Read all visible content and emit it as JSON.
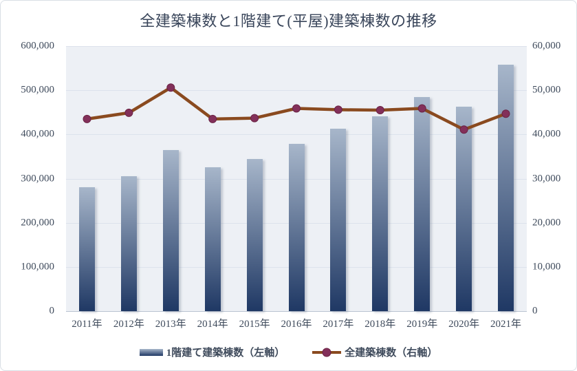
{
  "title": "全建築棟数と1階建て(平屋)建築棟数の推移",
  "legend": {
    "bars": "1階建て建築棟数（左軸）",
    "line": "全建築棟数（右軸）"
  },
  "axes": {
    "left_ticks": [
      "600,000",
      "500,000",
      "400,000",
      "300,000",
      "200,000",
      "100,000",
      "0"
    ],
    "right_ticks": [
      "60,000",
      "50,000",
      "40,000",
      "30,000",
      "20,000",
      "10,000",
      "0"
    ]
  },
  "colors": {
    "title_text": "#39455a",
    "axis_text": "#3f4b5c",
    "plot_bg": "#edf0f5",
    "gridline": "#dce2ec",
    "bar_top": "#a7b6ca",
    "bar_bottom": "#1f3864",
    "line": "#8a4a1f",
    "marker_fill": "#83305a",
    "marker_stroke": "#6b2344"
  },
  "chart_data": {
    "type": "bar",
    "subtype": "dual-axis bar+line combo",
    "title": "全建築棟数と1階建て(平屋)建築棟数の推移",
    "categories": [
      "2011年",
      "2012年",
      "2013年",
      "2014年",
      "2015年",
      "2016年",
      "2017年",
      "2018年",
      "2019年",
      "2020年",
      "2021年"
    ],
    "series": [
      {
        "name": "1階建て建築棟数（左軸）",
        "type": "bar",
        "axis": "left",
        "values": [
          281000,
          305000,
          365000,
          326000,
          344000,
          379000,
          413000,
          441000,
          485000,
          463000,
          558000
        ]
      },
      {
        "name": "全建築棟数（右軸）",
        "type": "line",
        "axis": "right",
        "values": [
          43500,
          44900,
          50600,
          43500,
          43700,
          45900,
          45600,
          45500,
          45900,
          41100,
          44700
        ]
      }
    ],
    "xlabel": "",
    "ylabel_left": "",
    "ylabel_right": "",
    "left_ylim": [
      0,
      600000
    ],
    "right_ylim": [
      0,
      60000
    ],
    "grid": true,
    "legend_position": "bottom"
  }
}
